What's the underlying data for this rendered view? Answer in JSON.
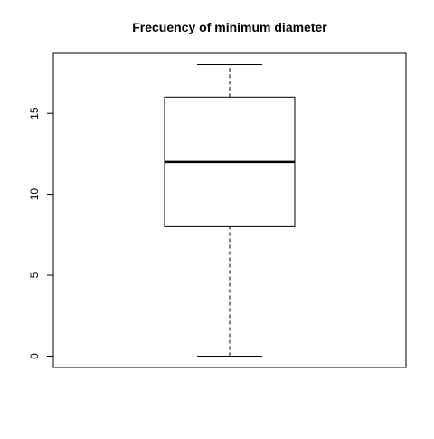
{
  "chart_data": {
    "type": "box",
    "title": "Frecuency of minimum diameter",
    "xlabel": "",
    "ylabel": "",
    "ylim": [
      -0.7,
      18.7
    ],
    "yticks": [
      0,
      5,
      10,
      15
    ],
    "ytick_labels": [
      "0",
      "5",
      "10",
      "15"
    ],
    "boxes": [
      {
        "min": 0,
        "q1": 8,
        "median": 12,
        "q3": 16,
        "max": 18
      }
    ],
    "grid": false,
    "legend": "none"
  }
}
